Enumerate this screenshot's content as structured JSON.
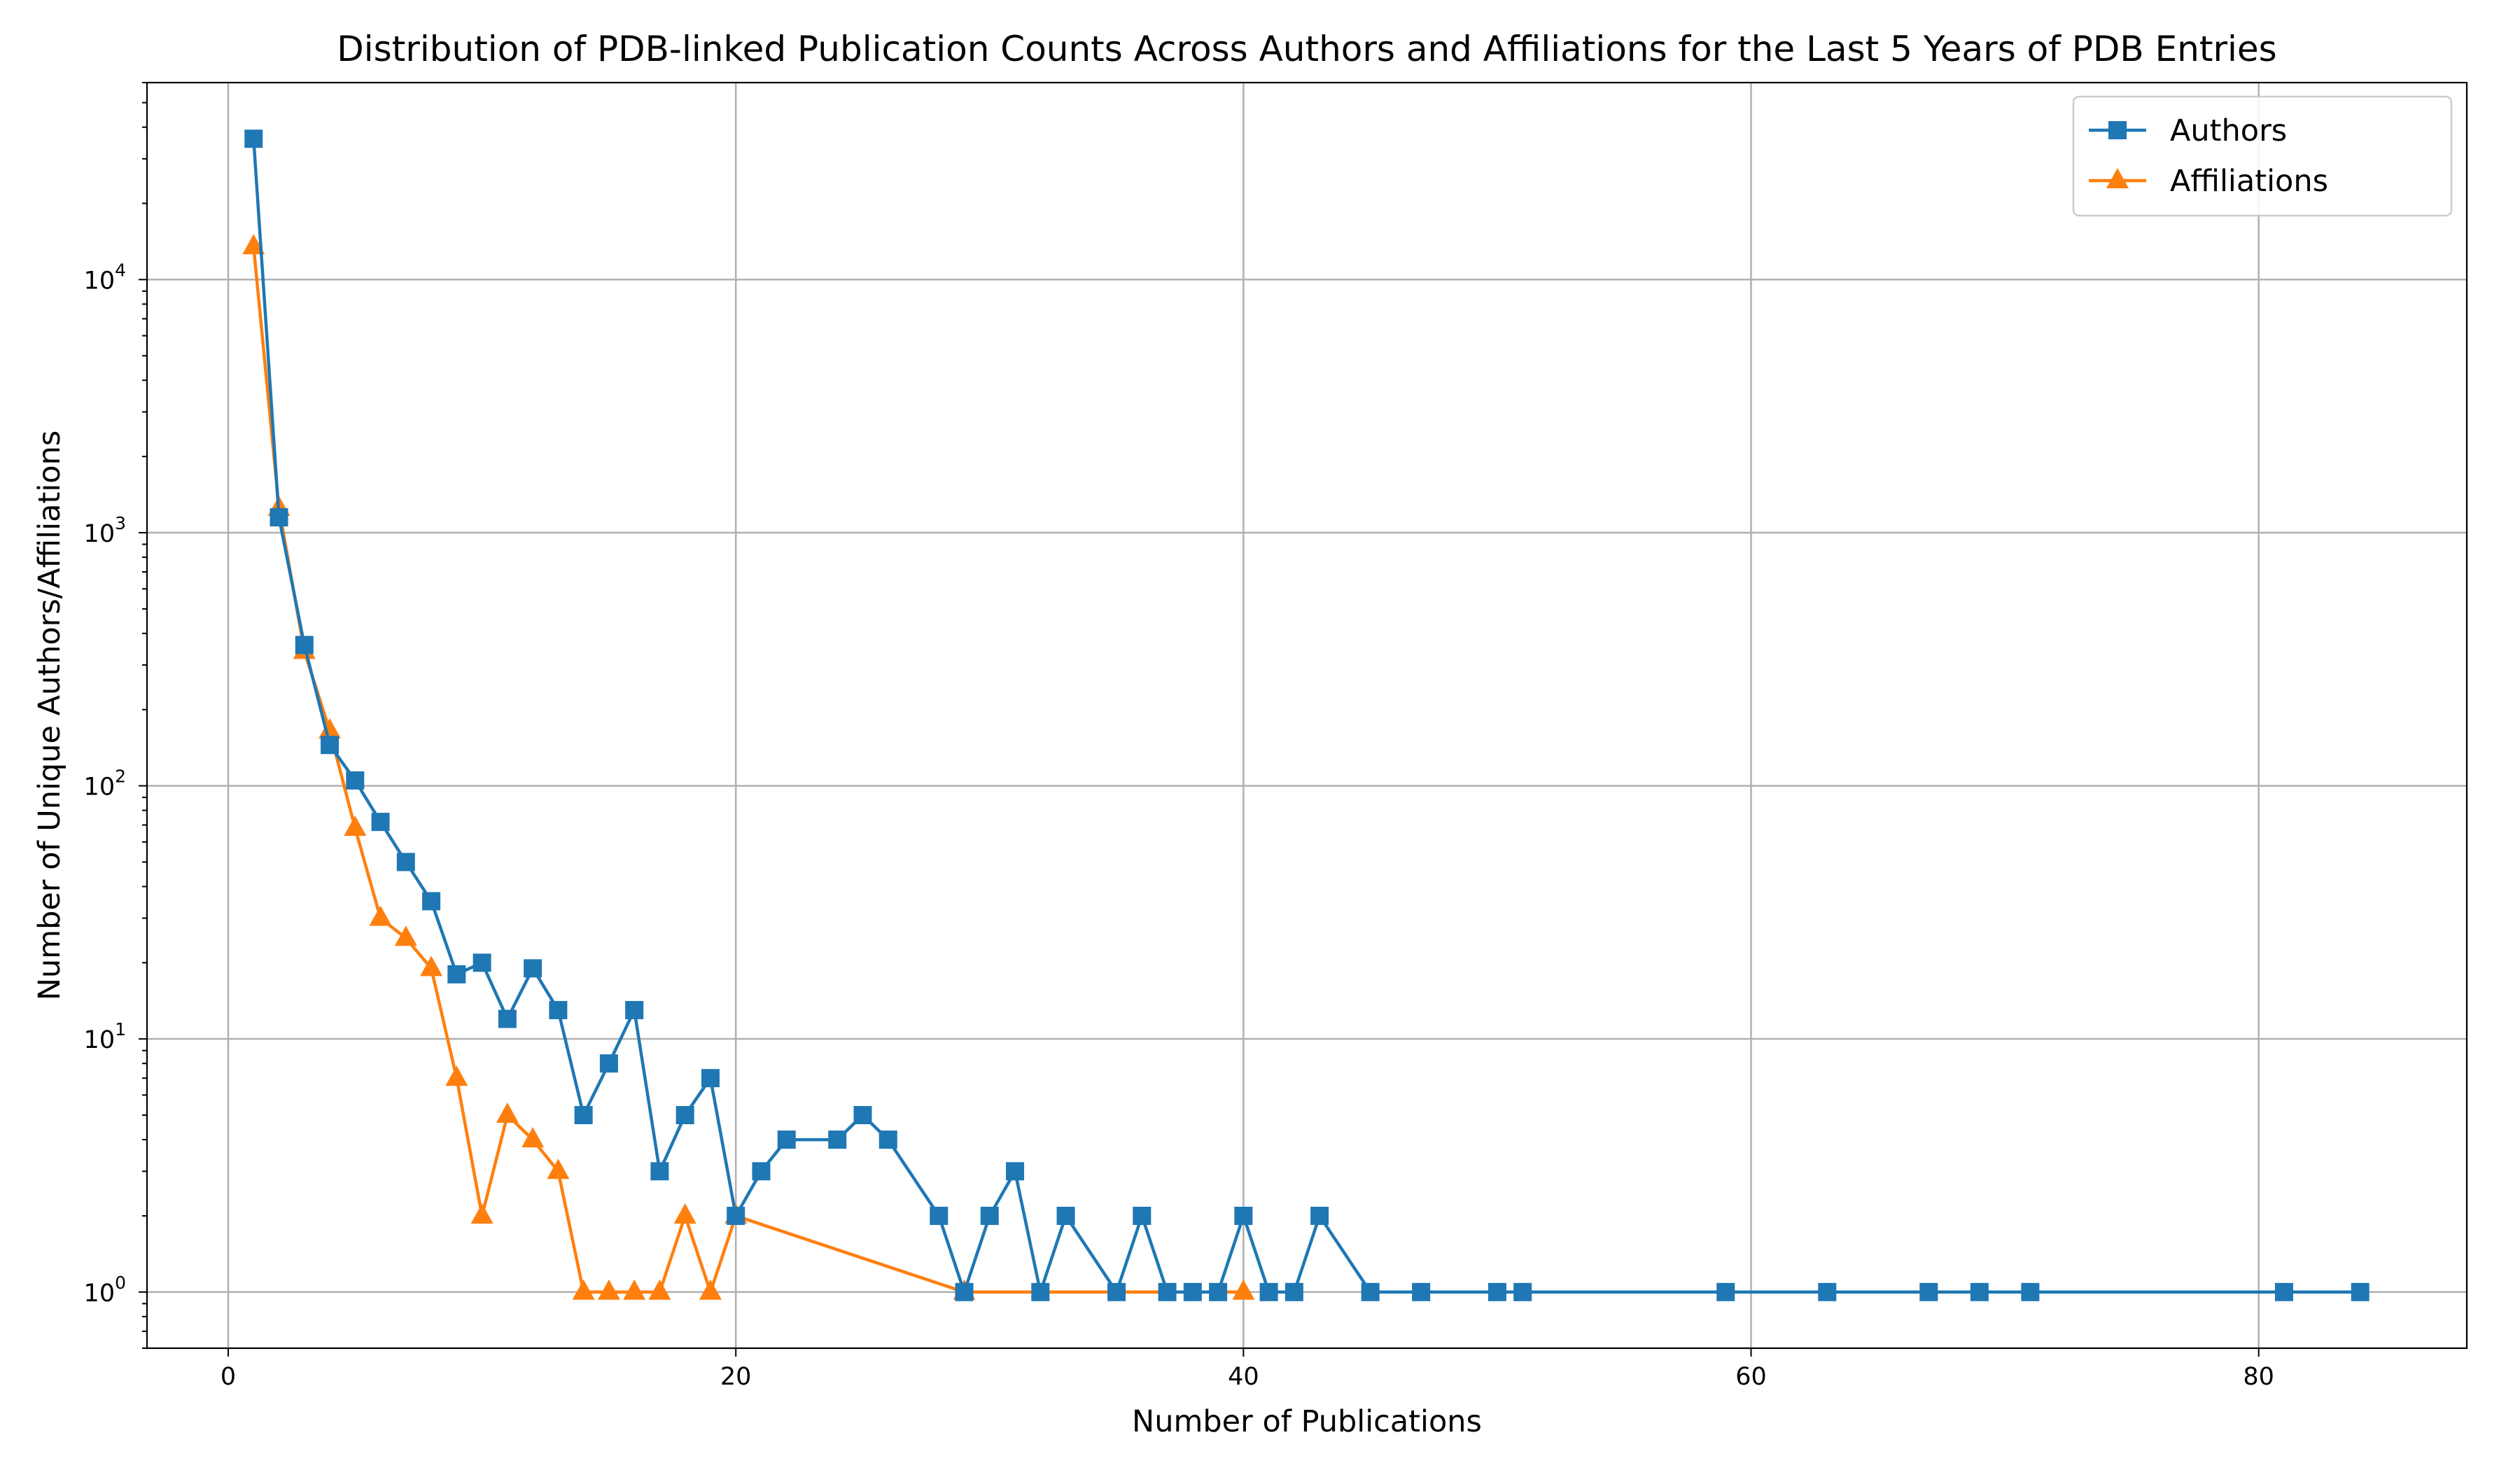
{
  "chart_data": {
    "type": "line",
    "title": "Distribution of PDB-linked Publication Counts Across Authors and Affiliations for the Last 5 Years of PDB Entries",
    "xlabel": "Number of Publications",
    "ylabel": "Number of Unique Authors/Affiliations",
    "xlim": [
      -3.2,
      88.2
    ],
    "ylim": [
      0.6,
      60000
    ],
    "yscale": "log",
    "xticks": [
      0,
      20,
      40,
      60,
      80
    ],
    "yticks": [
      {
        "value": 1,
        "base": "10",
        "exp": "0"
      },
      {
        "value": 10,
        "base": "10",
        "exp": "1"
      },
      {
        "value": 100,
        "base": "10",
        "exp": "2"
      },
      {
        "value": 1000,
        "base": "10",
        "exp": "3"
      },
      {
        "value": 10000,
        "base": "10",
        "exp": "4"
      }
    ],
    "grid": true,
    "legend_position": "top-right",
    "series": [
      {
        "name": "Authors",
        "color": "#1f77b4",
        "marker": "square",
        "x": [
          1,
          2,
          3,
          4,
          5,
          6,
          7,
          8,
          9,
          10,
          11,
          12,
          13,
          14,
          15,
          16,
          17,
          18,
          19,
          20,
          21,
          22,
          24,
          25,
          26,
          28,
          29,
          30,
          31,
          32,
          33,
          35,
          36,
          37,
          38,
          39,
          40,
          41,
          42,
          43,
          45,
          47,
          50,
          51,
          59,
          63,
          67,
          69,
          71,
          81,
          84
        ],
        "y": [
          36000,
          1150,
          360,
          145,
          105,
          72,
          50,
          35,
          18,
          20,
          12,
          19,
          13,
          5,
          8,
          13,
          3,
          5,
          7,
          2,
          3,
          4,
          4,
          5,
          4,
          2,
          1,
          2,
          3,
          1,
          2,
          1,
          2,
          1,
          1,
          1,
          2,
          1,
          1,
          2,
          1,
          1,
          1,
          1,
          1,
          1,
          1,
          1,
          1,
          1,
          1
        ]
      },
      {
        "name": "Affiliations",
        "color": "#ff7f0e",
        "marker": "triangle",
        "x": [
          1,
          2,
          3,
          4,
          5,
          6,
          7,
          8,
          9,
          10,
          11,
          12,
          13,
          14,
          15,
          16,
          17,
          18,
          19,
          20,
          29,
          40
        ],
        "y": [
          13500,
          1250,
          340,
          165,
          68,
          30,
          25,
          19,
          7,
          2,
          5,
          4,
          3,
          1,
          1,
          1,
          1,
          2,
          1,
          2,
          1,
          1
        ]
      }
    ]
  }
}
